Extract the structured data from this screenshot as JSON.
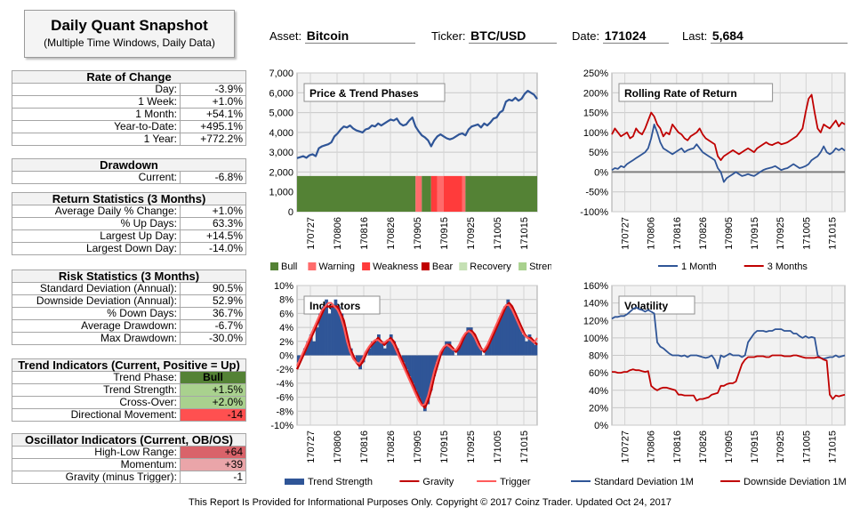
{
  "title": {
    "main": "Daily Quant Snapshot",
    "sub": "(Multiple Time Windows, Daily Data)"
  },
  "header": {
    "asset_label": "Asset:",
    "asset": "Bitcoin",
    "ticker_label": "Ticker:",
    "ticker": "BTC/USD",
    "date_label": "Date:",
    "date": "171024",
    "last_label": "Last:",
    "last": "5,684"
  },
  "tables": [
    {
      "title": "Rate of Change",
      "rows": [
        {
          "label": "Day:",
          "value": "-3.9%"
        },
        {
          "label": "1 Week:",
          "value": "+1.0%"
        },
        {
          "label": "1 Month:",
          "value": "+54.1%"
        },
        {
          "label": "Year-to-Date:",
          "value": "+495.1%"
        },
        {
          "label": "1 Year:",
          "value": "+772.2%"
        }
      ]
    },
    {
      "title": "Drawdown",
      "rows": [
        {
          "label": "Current:",
          "value": "-6.8%"
        }
      ]
    },
    {
      "title": "Return Statistics (3 Months)",
      "rows": [
        {
          "label": "Average Daily % Change:",
          "value": "+1.0%"
        },
        {
          "label": "% Up Days:",
          "value": "63.3%"
        },
        {
          "label": "Largest Up Day:",
          "value": "+14.5%"
        },
        {
          "label": "Largest Down Day:",
          "value": "-14.0%"
        }
      ]
    },
    {
      "title": "Risk Statistics (3 Months)",
      "rows": [
        {
          "label": "Standard Deviation (Annual):",
          "value": "90.5%"
        },
        {
          "label": "Downside Deviation (Annual):",
          "value": "52.9%"
        },
        {
          "label": "% Down Days:",
          "value": "36.7%"
        },
        {
          "label": "Average Drawdown:",
          "value": "-6.7%"
        },
        {
          "label": "Max Drawdown:",
          "value": "-30.0%"
        }
      ]
    },
    {
      "title": "Trend Indicators (Current, Positive = Up)",
      "rows": [
        {
          "label": "Trend Phase:",
          "value": "Bull",
          "bg": "#548235",
          "bold": true,
          "center": true
        },
        {
          "label": "Trend Strength:",
          "value": "+1.5%",
          "bg": "#a9d18e"
        },
        {
          "label": "Cross-Over:",
          "value": "+2.0%",
          "bg": "#a9d18e"
        },
        {
          "label": "Directional Movement:",
          "value": "-14",
          "bg": "#ff5050"
        }
      ]
    },
    {
      "title": "Oscillator Indicators (Current, OB/OS)",
      "rows": [
        {
          "label": "High-Low Range:",
          "value": "+64",
          "bg": "#d9636a"
        },
        {
          "label": "Momentum:",
          "value": "+39",
          "bg": "#eaa5a9"
        },
        {
          "label": "Gravity (minus Trigger):",
          "value": "-1"
        }
      ]
    }
  ],
  "footer": "This Report Is Provided for Informational Purposes Only. Copyright © 2017 Coinz Trader. Updated Oct 24, 2017",
  "chart_data": [
    {
      "id": "price",
      "type": "line",
      "title": "Price & Trend Phases",
      "x_ticks": [
        "170727",
        "170806",
        "170816",
        "170826",
        "170905",
        "170915",
        "170925",
        "171005",
        "171015"
      ],
      "ylim": [
        0,
        7000
      ],
      "y_ticks": [
        "0",
        "1,000",
        "2,000",
        "3,000",
        "4,000",
        "5,000",
        "6,000",
        "7,000"
      ],
      "series": [
        {
          "values": [
            2700,
            2750,
            2800,
            2720,
            2850,
            2900,
            2800,
            3200,
            3300,
            3350,
            3400,
            3500,
            3800,
            3950,
            4150,
            4300,
            4250,
            4350,
            4200,
            4100,
            4050,
            4000,
            4150,
            4200,
            4350,
            4300,
            4450,
            4350,
            4450,
            4550,
            4650,
            4600,
            4700,
            4450,
            4350,
            4400,
            4600,
            4750,
            4300,
            4050,
            3850,
            3750,
            3600,
            3300,
            3600,
            3800,
            3900,
            3800,
            3700,
            3650,
            3700,
            3800,
            3900,
            3950,
            3850,
            4150,
            4300,
            4350,
            4400,
            4250,
            4450,
            4350,
            4500,
            4700,
            4750,
            5000,
            5100,
            5550,
            5650,
            5600,
            5750,
            5600,
            5700,
            5950,
            6100,
            6000,
            5900,
            5684
          ],
          "color": "#2f5597"
        }
      ],
      "phases_legend": [
        {
          "name": "Bull",
          "color": "#548235"
        },
        {
          "name": "Warning",
          "color": "#ff6b6b"
        },
        {
          "name": "Weakness",
          "color": "#ff3b3b"
        },
        {
          "name": "Bear",
          "color": "#c00000"
        },
        {
          "name": "Recovery",
          "color": "#c5e0b4"
        },
        {
          "name": "Strength",
          "color": "#a9d18e"
        }
      ],
      "phase_level": 1800,
      "phases": [
        {
          "from": 0,
          "to": 38,
          "phase": "Bull"
        },
        {
          "from": 38,
          "to": 40,
          "phase": "Warning"
        },
        {
          "from": 40,
          "to": 43,
          "phase": "Bull"
        },
        {
          "from": 43,
          "to": 45,
          "phase": "Weakness"
        },
        {
          "from": 45,
          "to": 47,
          "phase": "Warning"
        },
        {
          "from": 47,
          "to": 53,
          "phase": "Weakness"
        },
        {
          "from": 53,
          "to": 54,
          "phase": "Warning"
        },
        {
          "from": 54,
          "to": 78,
          "phase": "Bull"
        }
      ]
    },
    {
      "id": "rolling",
      "type": "line",
      "title": "Rolling Rate of Return",
      "x_ticks": [
        "170727",
        "170806",
        "170816",
        "170826",
        "170905",
        "170915",
        "170925",
        "171005",
        "171015"
      ],
      "ylim": [
        -100,
        250
      ],
      "y_ticks": [
        "-100%",
        "-50%",
        "0%",
        "50%",
        "100%",
        "150%",
        "200%",
        "250%"
      ],
      "series": [
        {
          "name": "1 Month",
          "color": "#2f5597",
          "values": [
            5,
            10,
            8,
            15,
            12,
            20,
            25,
            30,
            35,
            40,
            45,
            50,
            60,
            85,
            120,
            100,
            75,
            60,
            55,
            50,
            45,
            50,
            55,
            60,
            50,
            55,
            58,
            60,
            70,
            60,
            50,
            45,
            40,
            35,
            30,
            10,
            0,
            -25,
            -15,
            -10,
            -5,
            0,
            -5,
            -10,
            -8,
            -5,
            -8,
            -10,
            -5,
            0,
            5,
            8,
            10,
            12,
            15,
            10,
            5,
            8,
            10,
            15,
            20,
            15,
            10,
            12,
            15,
            20,
            30,
            35,
            40,
            50,
            65,
            50,
            45,
            50,
            60,
            55,
            60,
            54
          ]
        },
        {
          "name": "3 Months",
          "color": "#c00000",
          "values": [
            95,
            110,
            100,
            90,
            95,
            100,
            85,
            90,
            110,
            100,
            95,
            110,
            130,
            150,
            140,
            120,
            110,
            90,
            100,
            95,
            120,
            110,
            100,
            95,
            85,
            80,
            90,
            95,
            100,
            110,
            95,
            85,
            80,
            75,
            70,
            40,
            30,
            40,
            45,
            50,
            55,
            50,
            45,
            50,
            55,
            60,
            55,
            50,
            60,
            65,
            70,
            75,
            70,
            68,
            72,
            75,
            70,
            72,
            75,
            80,
            85,
            90,
            100,
            110,
            150,
            185,
            195,
            150,
            110,
            100,
            120,
            115,
            110,
            120,
            130,
            115,
            125,
            120
          ]
        }
      ]
    },
    {
      "id": "indicators",
      "type": "bar",
      "title": "Indicators",
      "x_ticks": [
        "170727",
        "170806",
        "170816",
        "170826",
        "170905",
        "170915",
        "170925",
        "171005",
        "171015"
      ],
      "ylim": [
        -10,
        10
      ],
      "y_ticks": [
        "-10%",
        "-8%",
        "-6%",
        "-4%",
        "-2%",
        "0%",
        "2%",
        "4%",
        "6%",
        "8%",
        "10%"
      ],
      "series": [
        {
          "name": "Trend Strength",
          "color": "#2f5597",
          "values": [
            -1,
            0,
            1,
            2,
            3,
            2,
            4,
            6,
            7,
            8,
            6,
            7,
            8,
            7,
            6,
            4,
            2,
            1,
            0,
            -1,
            -2,
            -1,
            0,
            1,
            2,
            2,
            3,
            2,
            1,
            2,
            3,
            2,
            1,
            0,
            -1,
            -2,
            -3,
            -4,
            -5,
            -6,
            -7,
            -8,
            -7,
            -5,
            -3,
            -1,
            0,
            1,
            2,
            2,
            1,
            0,
            1,
            2,
            3,
            4,
            4,
            3,
            2,
            1,
            0,
            1,
            2,
            3,
            4,
            5,
            6,
            7,
            8,
            7,
            6,
            5,
            4,
            3,
            2,
            3,
            2,
            1.5
          ]
        },
        {
          "name": "Gravity",
          "color": "#c00000",
          "values": [
            -2,
            -1,
            0,
            1,
            2,
            3,
            4,
            5,
            6,
            7,
            7,
            7,
            7,
            7,
            6,
            5,
            3,
            1,
            0,
            -1,
            -1.5,
            -1,
            0,
            1,
            1.5,
            2,
            2.5,
            2,
            1.5,
            2,
            2.5,
            2,
            1,
            0,
            -1,
            -2,
            -3,
            -4,
            -5,
            -6,
            -7,
            -7.5,
            -6.5,
            -5,
            -3,
            -1.5,
            0,
            1,
            1.5,
            1.5,
            1,
            0.5,
            1,
            2,
            3,
            3.5,
            3.5,
            3,
            2,
            1,
            0.5,
            1,
            2,
            3,
            4,
            5,
            6,
            7,
            7.5,
            7,
            6,
            5,
            4,
            3,
            2.5,
            2.5,
            2,
            1.5
          ]
        },
        {
          "name": "Trigger",
          "color": "#ff5b5b",
          "values": [
            -1.5,
            -0.5,
            0.5,
            1.5,
            2.5,
            3.5,
            4.5,
            5.5,
            6.5,
            7,
            7.5,
            7.5,
            7,
            6.5,
            5.5,
            4,
            2,
            0.5,
            -0.5,
            -1,
            -1.2,
            -0.5,
            0.5,
            1.2,
            1.8,
            2.2,
            2.2,
            1.8,
            1.8,
            2.2,
            2.2,
            1.5,
            0.5,
            -0.5,
            -1.5,
            -2.5,
            -3.5,
            -4.5,
            -5.5,
            -6.5,
            -7.2,
            -7,
            -5.8,
            -4,
            -2.2,
            -0.8,
            0.5,
            1.2,
            1.5,
            1.2,
            0.8,
            0.8,
            1.5,
            2.5,
            3.2,
            3.5,
            3.2,
            2.5,
            1.5,
            0.8,
            0.8,
            1.5,
            2.5,
            3.5,
            4.5,
            5.5,
            6.5,
            7.2,
            7.2,
            6.5,
            5.5,
            4.5,
            3.5,
            2.8,
            2.5,
            2.2,
            1.8,
            2.5
          ]
        }
      ]
    },
    {
      "id": "volatility",
      "type": "line",
      "title": "Volatility",
      "x_ticks": [
        "170727",
        "170806",
        "170816",
        "170826",
        "170905",
        "170915",
        "170925",
        "171005",
        "171015"
      ],
      "ylim": [
        0,
        160
      ],
      "y_ticks": [
        "0%",
        "20%",
        "40%",
        "60%",
        "80%",
        "100%",
        "120%",
        "140%",
        "160%"
      ],
      "series": [
        {
          "name": "Standard Deviation 1M",
          "color": "#2f5597",
          "values": [
            122,
            124,
            124,
            125,
            125,
            127,
            130,
            133,
            135,
            133,
            132,
            130,
            132,
            130,
            128,
            95,
            90,
            88,
            85,
            82,
            80,
            80,
            80,
            79,
            80,
            78,
            80,
            80,
            80,
            79,
            78,
            77,
            78,
            80,
            75,
            65,
            80,
            78,
            80,
            82,
            80,
            80,
            80,
            78,
            80,
            95,
            100,
            105,
            108,
            108,
            108,
            107,
            108,
            108,
            110,
            110,
            110,
            108,
            108,
            108,
            105,
            105,
            102,
            100,
            102,
            100,
            101,
            100,
            80,
            77,
            76,
            77,
            78,
            78,
            80,
            78,
            79,
            80
          ]
        },
        {
          "name": "Downside Deviation 1M",
          "color": "#c00000",
          "values": [
            61,
            61,
            60,
            60,
            61,
            61,
            63,
            64,
            63,
            63,
            62,
            61,
            62,
            45,
            42,
            40,
            42,
            43,
            43,
            42,
            41,
            40,
            35,
            35,
            34,
            34,
            34,
            34,
            28,
            30,
            30,
            31,
            32,
            35,
            36,
            37,
            45,
            45,
            47,
            48,
            48,
            50,
            60,
            70,
            75,
            78,
            78,
            78,
            79,
            79,
            79,
            78,
            78,
            80,
            80,
            80,
            80,
            79,
            79,
            79,
            80,
            80,
            79,
            78,
            77,
            77,
            77,
            77,
            78,
            77,
            75,
            74,
            35,
            30,
            34,
            33,
            34,
            35
          ]
        }
      ]
    }
  ]
}
